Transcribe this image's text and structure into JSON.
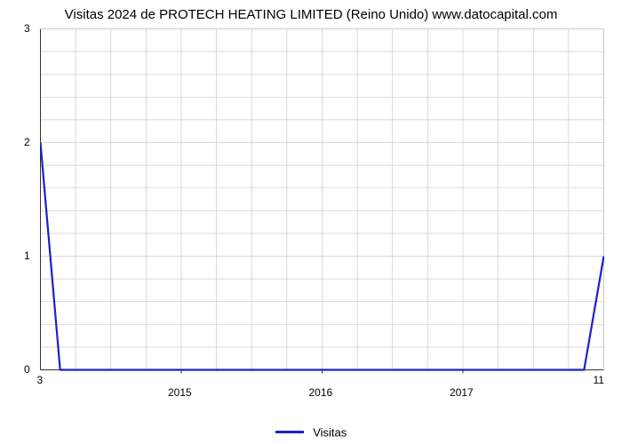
{
  "chart": {
    "type": "line",
    "title": "Visitas 2024 de PROTECH HEATING LIMITED (Reino Unido) www.datocapital.com",
    "title_fontsize": 15,
    "title_color": "#000000",
    "background_color": "#ffffff",
    "series_color": "#1e20c9",
    "series_width": 2.2,
    "grid_color": "#cccccc",
    "grid_width": 0.7,
    "axis_color": "#333333",
    "y": {
      "min": 0,
      "max": 3,
      "ticks": [
        0,
        1,
        2,
        3
      ],
      "label_fontsize": 12
    },
    "x": {
      "min": 0,
      "max": 1,
      "corner_left_label": "3",
      "corner_right_label": "11",
      "tick_labels": [
        "2015",
        "2016",
        "2017"
      ],
      "tick_positions": [
        0.25,
        0.5,
        0.75
      ],
      "minor_vlines": [
        0.0625,
        0.125,
        0.1875,
        0.25,
        0.3125,
        0.375,
        0.4375,
        0.5,
        0.5625,
        0.625,
        0.6875,
        0.75,
        0.8125,
        0.875,
        0.9375
      ],
      "label_fontsize": 12
    },
    "data_points": [
      {
        "x": 0.0,
        "y": 2.0
      },
      {
        "x": 0.035,
        "y": 0.0
      },
      {
        "x": 0.965,
        "y": 0.0
      },
      {
        "x": 1.0,
        "y": 1.0
      }
    ],
    "legend": {
      "label": "Visitas",
      "color": "#1e20c9",
      "fontsize": 13
    }
  }
}
